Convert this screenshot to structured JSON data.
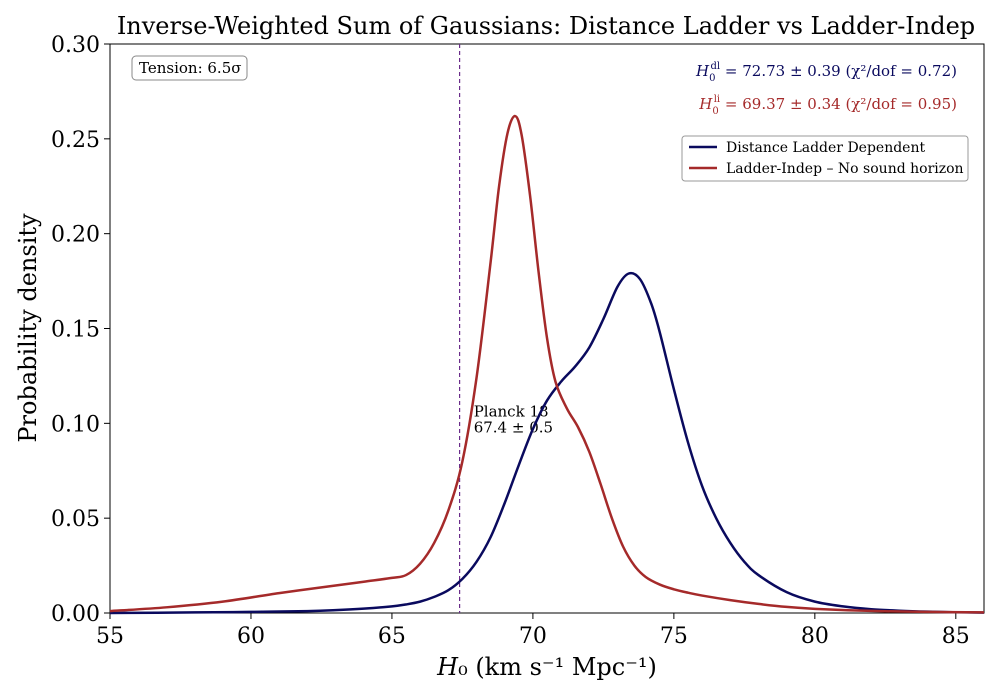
{
  "chart_data": {
    "type": "line",
    "title": "Inverse-Weighted Sum of Gaussians: Distance Ladder vs Ladder-Indep",
    "xlabel": "H₀ (km s⁻¹ Mpc⁻¹)",
    "ylabel": "Probability density",
    "xlim": [
      55,
      86
    ],
    "ylim": [
      0,
      0.3
    ],
    "xticks": [
      55,
      60,
      65,
      70,
      75,
      80,
      85
    ],
    "xtick_labels": [
      "55",
      "60",
      "65",
      "70",
      "75",
      "80",
      "85"
    ],
    "yticks": [
      0.0,
      0.05,
      0.1,
      0.15,
      0.2,
      0.25,
      0.3
    ],
    "ytick_labels": [
      "0.00",
      "0.05",
      "0.10",
      "0.15",
      "0.20",
      "0.25",
      "0.30"
    ],
    "grid": false,
    "legend_position": "top-right",
    "series": [
      {
        "name": "Distance Ladder Dependent",
        "color": "#0a0a5e",
        "x": [
          55,
          58,
          60,
          62,
          63,
          64,
          65,
          65.5,
          66,
          66.5,
          67,
          67.5,
          68,
          68.5,
          69,
          69.5,
          70,
          70.5,
          71,
          71.5,
          72,
          72.5,
          73,
          73.4,
          73.8,
          74.2,
          74.5,
          75,
          75.5,
          76,
          76.5,
          77,
          77.5,
          78,
          79,
          80,
          81,
          82,
          83,
          84,
          85,
          86
        ],
        "y": [
          0.0,
          0.0003,
          0.0006,
          0.001,
          0.0015,
          0.0023,
          0.0035,
          0.0045,
          0.006,
          0.0085,
          0.012,
          0.018,
          0.027,
          0.04,
          0.058,
          0.078,
          0.097,
          0.112,
          0.122,
          0.13,
          0.14,
          0.155,
          0.172,
          0.179,
          0.176,
          0.163,
          0.148,
          0.118,
          0.09,
          0.067,
          0.05,
          0.037,
          0.027,
          0.02,
          0.011,
          0.006,
          0.0035,
          0.002,
          0.0012,
          0.0007,
          0.0004,
          0.0002
        ]
      },
      {
        "name": "Ladder-Indep – No sound horizon",
        "color": "#a52a2a",
        "x": [
          55,
          57,
          59,
          61,
          63,
          64,
          65,
          65.5,
          66,
          66.5,
          67,
          67.5,
          68,
          68.5,
          68.8,
          69.1,
          69.37,
          69.6,
          69.9,
          70.2,
          70.5,
          70.8,
          71.2,
          71.6,
          72,
          72.4,
          72.8,
          73.2,
          73.6,
          74,
          74.5,
          75,
          75.5,
          76,
          77,
          78,
          79,
          80,
          82,
          84,
          86
        ],
        "y": [
          0.001,
          0.003,
          0.006,
          0.0105,
          0.0145,
          0.0165,
          0.0185,
          0.02,
          0.026,
          0.037,
          0.054,
          0.08,
          0.124,
          0.185,
          0.225,
          0.253,
          0.262,
          0.252,
          0.22,
          0.18,
          0.145,
          0.122,
          0.108,
          0.098,
          0.085,
          0.068,
          0.05,
          0.035,
          0.025,
          0.019,
          0.015,
          0.0125,
          0.0107,
          0.0092,
          0.0068,
          0.0048,
          0.0032,
          0.0022,
          0.0011,
          0.0006,
          0.0003
        ]
      }
    ],
    "reference_line": {
      "x": 67.4,
      "color": "#6a2c8a",
      "style": "dashed",
      "label_line1": "Planck 18",
      "label_line2": "67.4 ± 0.5",
      "label_x": 67.9,
      "label_y": 0.1
    },
    "annotations": {
      "tension": "Tension: 6.5σ",
      "dl_prefix": "H",
      "dl_sup": "dl",
      "dl_sub": "0",
      "dl_text": " = 72.73 ± 0.39 (χ²/dof = 0.72)",
      "li_prefix": "H",
      "li_sup": "li",
      "li_sub": "0",
      "li_text": " = 69.37 ± 0.34 (χ²/dof = 0.95)"
    }
  }
}
